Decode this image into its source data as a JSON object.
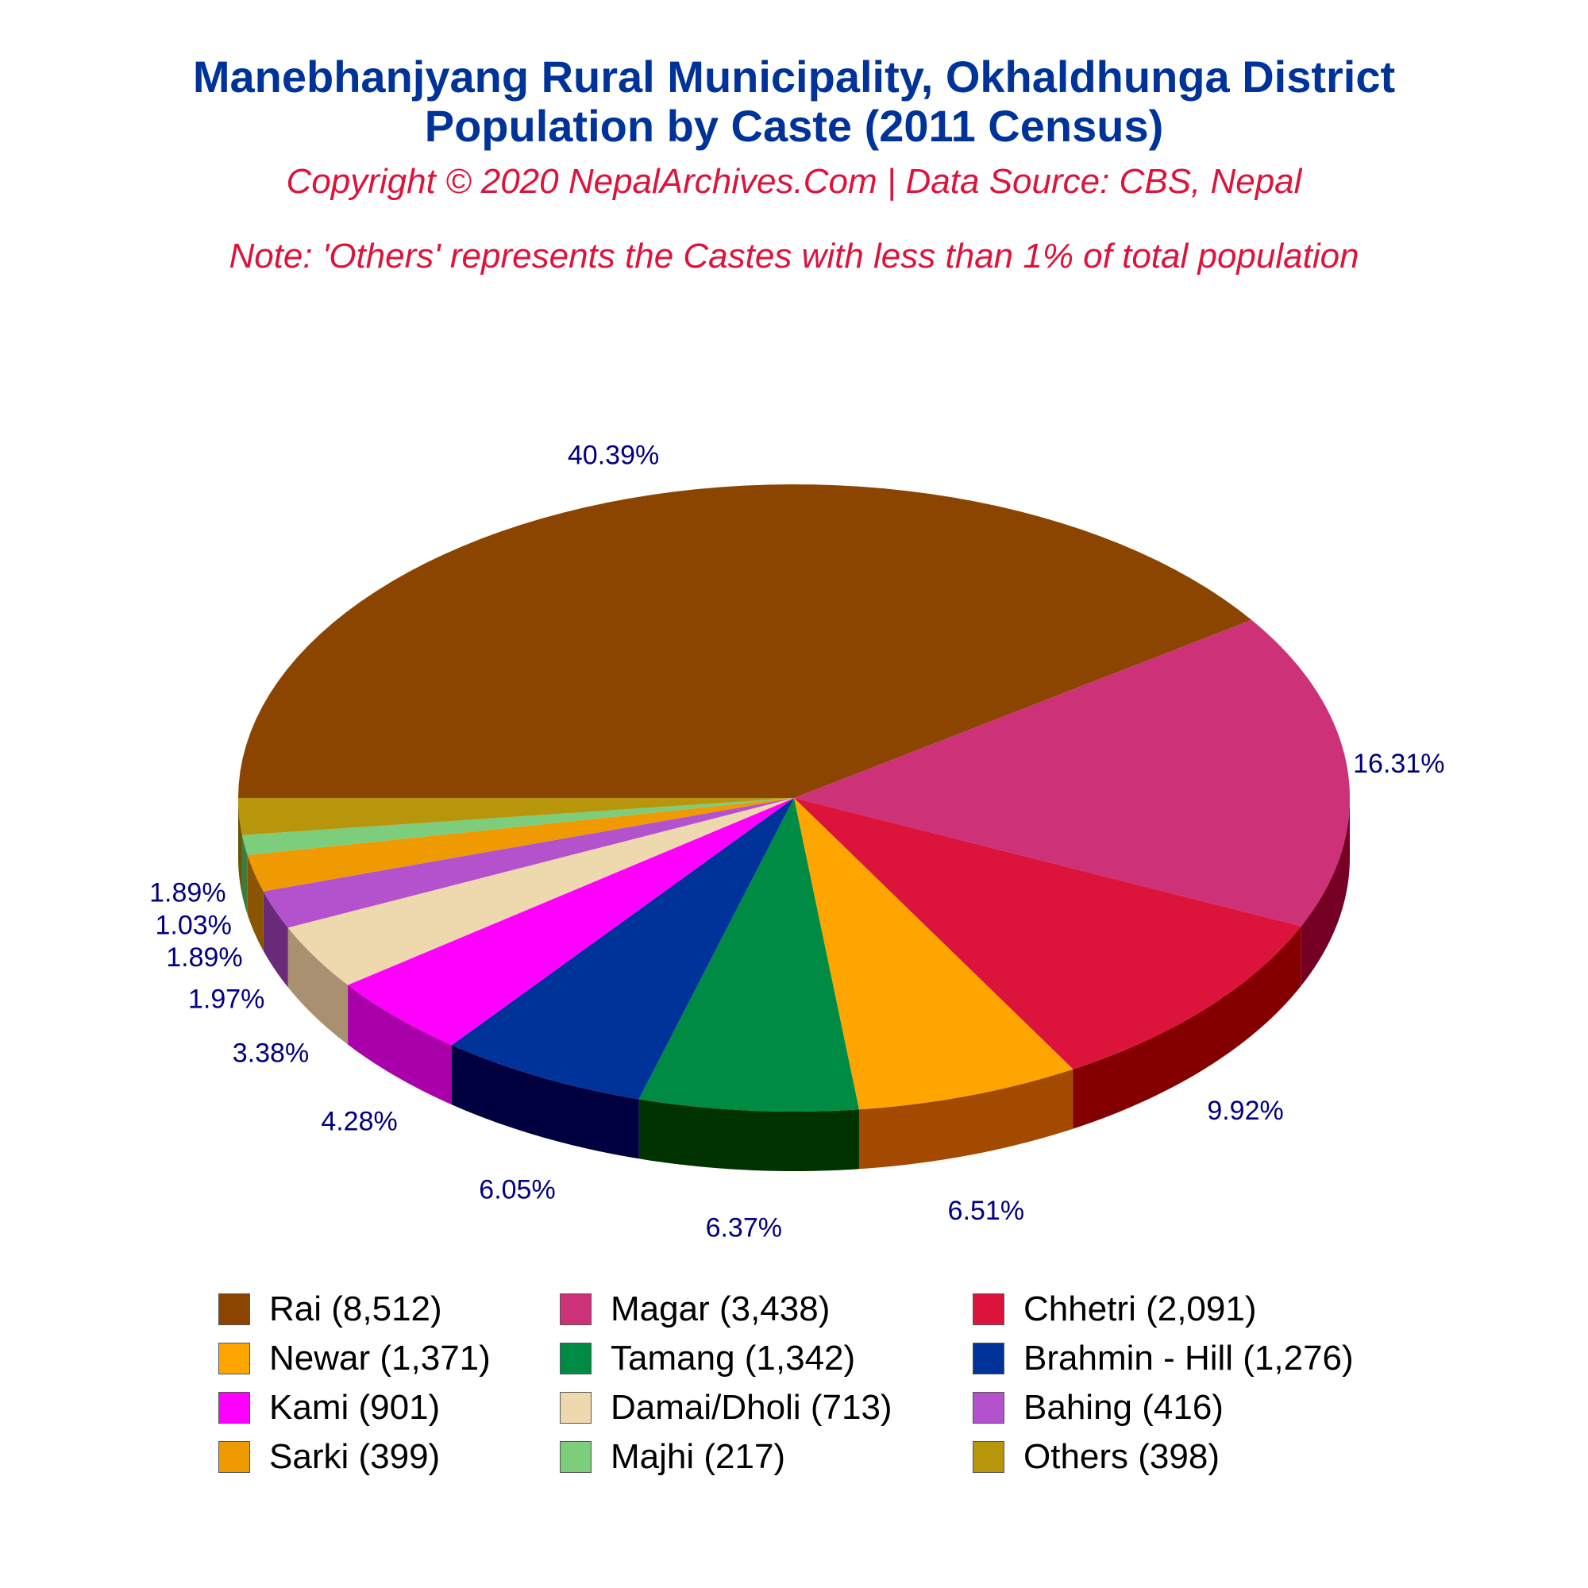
{
  "chart_data": {
    "type": "pie",
    "title": "Manebhanjyang Rural Municipality, Okhaldhunga District",
    "subtitle": "Population by Caste (2011 Census)",
    "copyright": "Copyright © 2020 NepalArchives.Com | Data Source: CBS, Nepal",
    "note": "Note: 'Others' represents the Castes with less than 1% of total population",
    "legend_position": "bottom",
    "slices": [
      {
        "label": "Rai",
        "legend": "Rai (8,512)",
        "value": 8512,
        "percent": "40.39%",
        "color": "#8b4500",
        "side": "#5a2d00"
      },
      {
        "label": "Magar",
        "legend": "Magar (3,438)",
        "value": 3438,
        "percent": "16.31%",
        "color": "#cd3278",
        "side": "#760024"
      },
      {
        "label": "Chhetri",
        "legend": "Chhetri (2,091)",
        "value": 2091,
        "percent": "9.92%",
        "color": "#dc143c",
        "side": "#840000"
      },
      {
        "label": "Newar",
        "legend": "Newar (1,371)",
        "value": 1371,
        "percent": "6.51%",
        "color": "#ffa500",
        "side": "#a34a00"
      },
      {
        "label": "Tamang",
        "legend": "Tamang (1,342)",
        "value": 1342,
        "percent": "6.37%",
        "color": "#008b45",
        "side": "#003300"
      },
      {
        "label": "Brahmin - Hill",
        "legend": "Brahmin - Hill (1,276)",
        "value": 1276,
        "percent": "6.05%",
        "color": "#003399",
        "side": "#000040"
      },
      {
        "label": "Kami",
        "legend": "Kami (901)",
        "value": 901,
        "percent": "4.28%",
        "color": "#ff00ff",
        "side": "#aa00aa"
      },
      {
        "label": "Damai/Dholi",
        "legend": "Damai/Dholi (713)",
        "value": 713,
        "percent": "3.38%",
        "color": "#eed8ae",
        "side": "#a89070"
      },
      {
        "label": "Bahing",
        "legend": "Bahing (416)",
        "value": 416,
        "percent": "1.97%",
        "color": "#b452cd",
        "side": "#6a2a7a"
      },
      {
        "label": "Sarki",
        "legend": "Sarki (399)",
        "value": 399,
        "percent": "1.89%",
        "color": "#ee9a00",
        "side": "#8a5500"
      },
      {
        "label": "Majhi",
        "legend": "Majhi (217)",
        "value": 217,
        "percent": "1.03%",
        "color": "#7ccd7c",
        "side": "#3f7a3f"
      },
      {
        "label": "Others",
        "legend": "Others (398)",
        "value": 398,
        "percent": "1.89%",
        "color": "#b8960c",
        "side": "#6a5500"
      }
    ]
  }
}
